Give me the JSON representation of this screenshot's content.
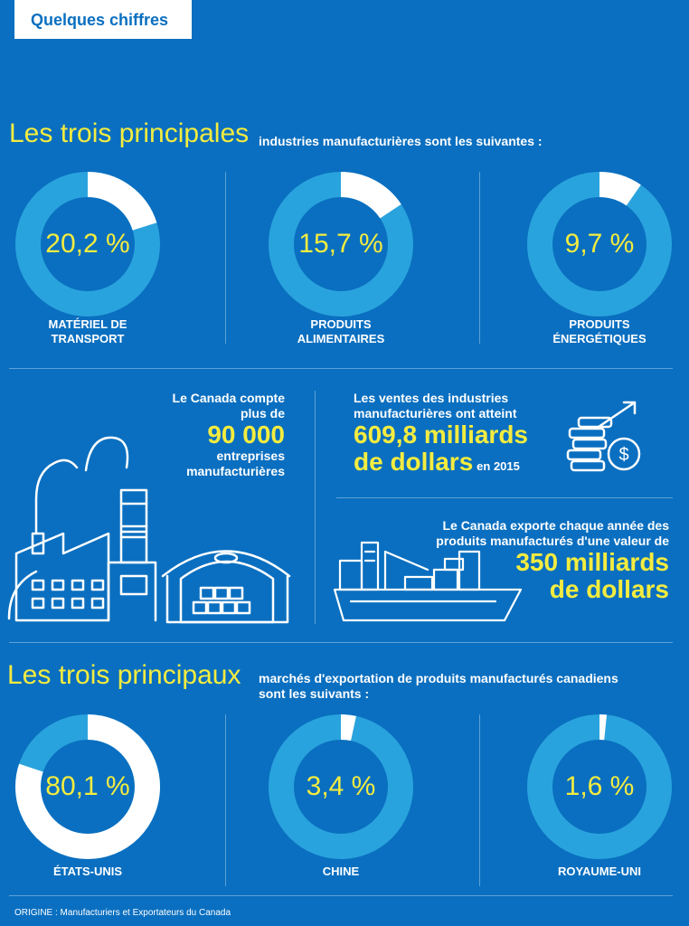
{
  "tab_title": "Quelques chiffres",
  "section1": {
    "lead": "Les trois principales",
    "rest": "industries manufacturières sont les suivantes :",
    "items": [
      {
        "pct": "20,2 %",
        "value": 20.2,
        "label_line1": "MATÉRIEL DE",
        "label_line2": "TRANSPORT"
      },
      {
        "pct": "15,7 %",
        "value": 15.7,
        "label_line1": "PRODUITS",
        "label_line2": "ALIMENTAIRES"
      },
      {
        "pct": "9,7 %",
        "value": 9.7,
        "label_line1": "PRODUITS",
        "label_line2": "ÉNERGÉTIQUES"
      }
    ]
  },
  "stats": {
    "companies": {
      "line1": "Le Canada compte",
      "line2": "plus de",
      "number": "90 000",
      "line3": "entreprises",
      "line4": "manufacturières"
    },
    "sales": {
      "line1": "Les ventes des industries",
      "line2": "manufacturières ont atteint",
      "number1": "609,8 milliards",
      "number2": "de dollars",
      "suffix": "en 2015"
    },
    "exports": {
      "line1": "Le Canada exporte chaque année des",
      "line2": "produits manufacturés d'une valeur de",
      "number1": "350 milliards",
      "number2": "de dollars"
    }
  },
  "section2": {
    "lead": "Les trois principaux",
    "rest_line1": "marchés d'exportation de produits manufacturés canadiens",
    "rest_line2": "sont les suivants :",
    "items": [
      {
        "pct": "80,1 %",
        "value": 80.1,
        "label": "ÉTATS-UNIS"
      },
      {
        "pct": "3,4 %",
        "value": 3.4,
        "label": "CHINE"
      },
      {
        "pct": "1,6 %",
        "value": 1.6,
        "label": "ROYAUME-UNI"
      }
    ]
  },
  "source": "ORIGINE : Manufacturiers et Exportateurs du Canada",
  "colors": {
    "background": "#0a6fc0",
    "donut_base": "#29a3dd",
    "highlight": "#ffffff",
    "accent": "#f4ec3f"
  }
}
